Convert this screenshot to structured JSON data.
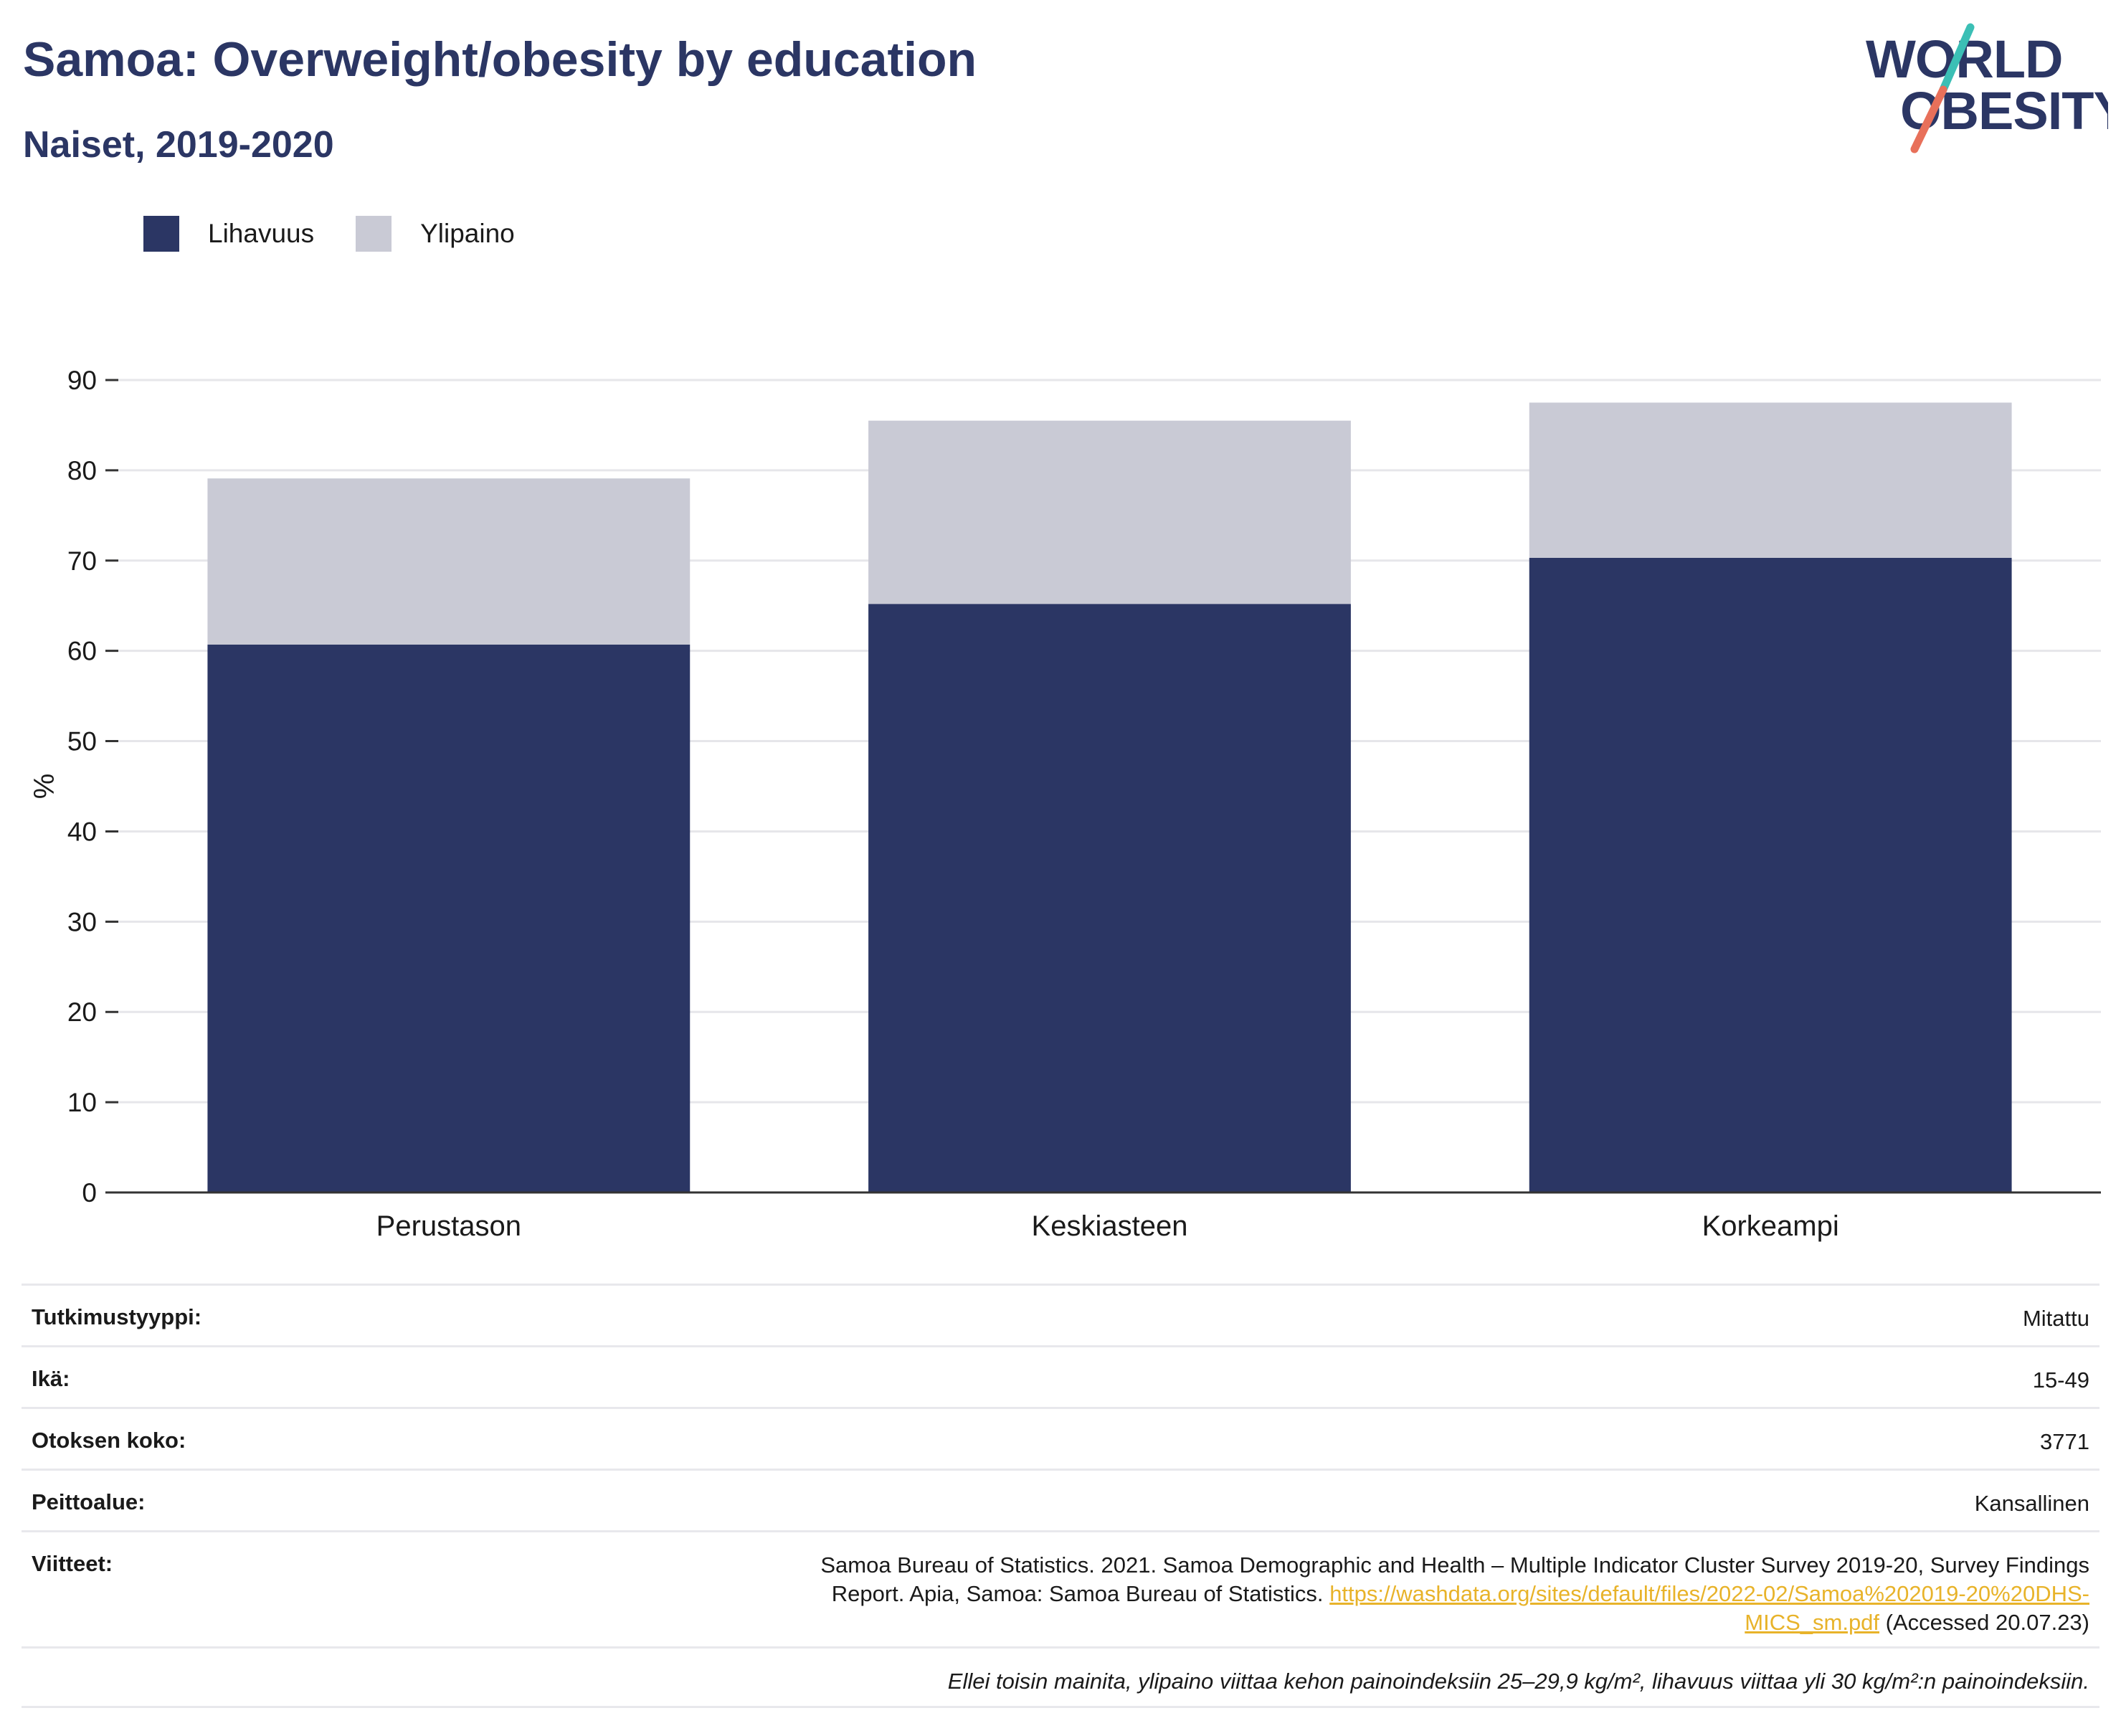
{
  "header": {
    "title": "Samoa: Overweight/obesity by education",
    "subtitle": "Naiset, 2019-2020"
  },
  "logo": {
    "line1": "WORLD",
    "line2": "OBESITY",
    "colors": {
      "text": "#2b3664",
      "slash_top": "#3bbfb5",
      "slash_bottom": "#e8705a"
    }
  },
  "legend": {
    "items": [
      {
        "label": "Lihavuus",
        "color": "#2b3664"
      },
      {
        "label": "Ylipaino",
        "color": "#c9cad5"
      }
    ]
  },
  "chart_data": {
    "type": "bar",
    "stacked": true,
    "categories": [
      "Perustason",
      "Keskiasteen",
      "Korkeampi"
    ],
    "series": [
      {
        "name": "Lihavuus",
        "values": [
          60.7,
          65.2,
          70.3
        ],
        "color": "#2b3664"
      },
      {
        "name": "Ylipaino",
        "values": [
          18.4,
          20.3,
          17.2
        ],
        "color": "#c9cad5"
      }
    ],
    "ylabel": "%",
    "ylim": [
      0,
      90
    ],
    "yticks": [
      "0",
      "10",
      "20",
      "30",
      "40",
      "50",
      "60",
      "70",
      "80",
      "90"
    ],
    "grid": true,
    "legend_position": "top-left"
  },
  "info": {
    "rows": [
      {
        "key": "Tutkimustyyppi:",
        "value": "Mitattu"
      },
      {
        "key": "Ikä:",
        "value": "15-49"
      },
      {
        "key": "Otoksen koko:",
        "value": "3771"
      },
      {
        "key": "Peittoalue:",
        "value": "Kansallinen"
      }
    ],
    "ref_key": "Viitteet:",
    "ref_text_line1": "Samoa Bureau of Statistics. 2021. Samoa Demographic and Health – Multiple Indicator Cluster Survey 2019-20, Survey Findings",
    "ref_text_line2": "Report. Apia, Samoa: Samoa Bureau of Statistics.",
    "ref_url_part1": "https://washdata.org/sites/default/files/2022-02/Samoa%202019-20%20DHS-",
    "ref_url_part2": "MICS_sm.pdf",
    "ref_accessed": "(Accessed 20.07.23)",
    "footnote": "Ellei toisin mainita, ylipaino viittaa kehon painoindeksiin 25–29,9 kg/m², lihavuus viittaa yli 30 kg/m²:n painoindeksiin."
  }
}
